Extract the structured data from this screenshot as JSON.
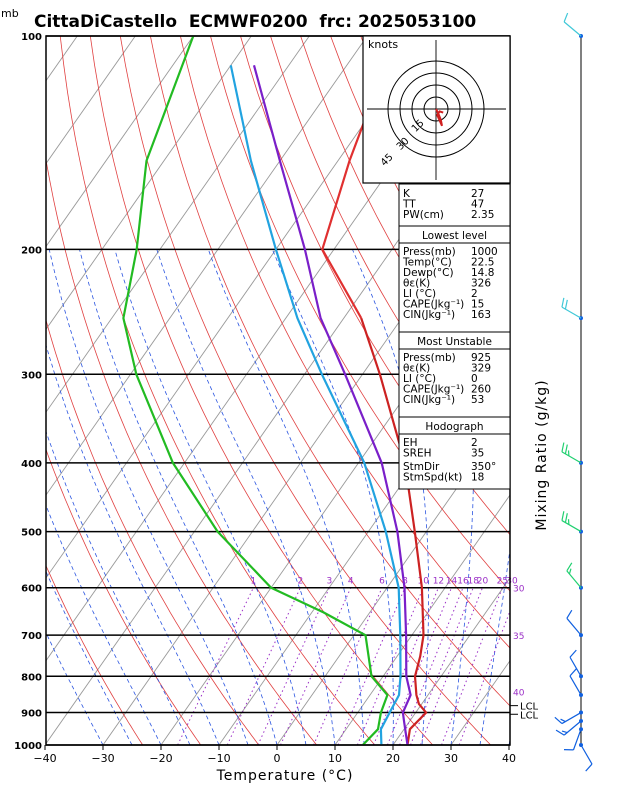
{
  "chart_data": {
    "type": "skew-t log-p sounding",
    "title": "CittaDiCastello  ECMWF0200  frc: 2025053100",
    "pressure_unit": "mb",
    "xlabel": "Temperature (°C)",
    "right_label": "Mixing Ratio (g/kg)",
    "x_range": [
      -40,
      40
    ],
    "x_ticks": [
      -40,
      -30,
      -20,
      -10,
      0,
      10,
      20,
      30,
      40
    ],
    "x_tick_labels": [
      "−40",
      "−30",
      "−20",
      "−10",
      "0",
      "10",
      "20",
      "30",
      "40"
    ],
    "p_range": [
      1000,
      100
    ],
    "p_ticks": [
      100,
      200,
      300,
      400,
      500,
      600,
      700,
      800,
      900,
      1000
    ],
    "mixing_ratio_labels": [
      "1",
      "2",
      "3",
      "4",
      "6",
      "8",
      "10",
      "12",
      "14",
      "16",
      "18",
      "20",
      "25",
      "30"
    ],
    "mixing_ratio_values": [
      1,
      2,
      3,
      4,
      6,
      8,
      10,
      12,
      14,
      16,
      18,
      20,
      25,
      30
    ],
    "right_temp_labels": [
      "30",
      "35",
      "40"
    ],
    "lcl_labels": [
      "LCL",
      "LCL"
    ],
    "series": [
      {
        "role": "temperature",
        "color": "#cc2222",
        "points": [
          [
            1000,
            22.5
          ],
          [
            950,
            21
          ],
          [
            900,
            21.8
          ],
          [
            875,
            19.5
          ],
          [
            850,
            18
          ],
          [
            800,
            15.5
          ],
          [
            750,
            14
          ],
          [
            700,
            12
          ],
          [
            600,
            6
          ],
          [
            500,
            -2
          ],
          [
            400,
            -12
          ],
          [
            300,
            -27
          ],
          [
            250,
            -37
          ]
        ]
      },
      {
        "role": "dewpoint",
        "color": "#22bb22",
        "points": [
          [
            1000,
            14.8
          ],
          [
            950,
            15.5
          ],
          [
            900,
            14
          ],
          [
            850,
            13
          ],
          [
            800,
            8
          ],
          [
            700,
            2
          ],
          [
            650,
            -8
          ],
          [
            600,
            -20
          ],
          [
            500,
            -36
          ],
          [
            400,
            -52
          ],
          [
            300,
            -69
          ],
          [
            250,
            -78
          ],
          [
            200,
            -84
          ],
          [
            150,
            -93
          ],
          [
            100,
            -100
          ]
        ]
      },
      {
        "role": "parcel",
        "color": "#7a1fc9",
        "points": [
          [
            1000,
            22.5
          ],
          [
            925,
            19
          ],
          [
            900,
            17.8
          ],
          [
            850,
            17
          ],
          [
            800,
            14
          ],
          [
            700,
            9
          ],
          [
            600,
            3
          ],
          [
            500,
            -5
          ],
          [
            400,
            -16
          ],
          [
            300,
            -33
          ],
          [
            250,
            -44
          ],
          [
            200,
            -55
          ],
          [
            150,
            -70
          ],
          [
            110,
            -86
          ]
        ]
      },
      {
        "role": "wet-bulb",
        "color": "#22a3e0",
        "points": [
          [
            1000,
            18
          ],
          [
            950,
            16
          ],
          [
            900,
            15.5
          ],
          [
            850,
            15
          ],
          [
            800,
            13
          ],
          [
            700,
            8
          ],
          [
            600,
            2
          ],
          [
            500,
            -7
          ],
          [
            400,
            -19
          ],
          [
            300,
            -37
          ],
          [
            250,
            -48
          ],
          [
            200,
            -60
          ],
          [
            150,
            -75
          ],
          [
            110,
            -90
          ]
        ]
      },
      {
        "role": "upper temperature",
        "color": "#e03030",
        "points": [
          [
            250,
            -37
          ],
          [
            200,
            -52
          ],
          [
            150,
            -58
          ],
          [
            100,
            -65
          ]
        ]
      }
    ],
    "winds": [
      {
        "p": 1000,
        "dir": 150,
        "kt": 10
      },
      {
        "p": 950,
        "dir": 200,
        "kt": 12
      },
      {
        "p": 925,
        "dir": 230,
        "kt": 15
      },
      {
        "p": 900,
        "dir": 240,
        "kt": 15
      },
      {
        "p": 850,
        "dir": 330,
        "kt": 12
      },
      {
        "p": 800,
        "dir": 330,
        "kt": 10
      },
      {
        "p": 700,
        "dir": 320,
        "kt": 10
      },
      {
        "p": 600,
        "dir": 320,
        "kt": 15
      },
      {
        "p": 500,
        "dir": 300,
        "kt": 25
      },
      {
        "p": 400,
        "dir": 300,
        "kt": 25
      },
      {
        "p": 250,
        "dir": 300,
        "kt": 20
      },
      {
        "p": 100,
        "dir": 310,
        "kt": 10
      }
    ],
    "hodograph": {
      "title": "knots",
      "ring_labels": [
        "15",
        "30",
        "45"
      ],
      "trace": [
        [
          0,
          0
        ],
        [
          2,
          -4
        ],
        [
          4,
          -9
        ],
        [
          5,
          -14
        ],
        [
          1,
          -5
        ],
        [
          3,
          -2
        ],
        [
          6,
          -3
        ]
      ]
    }
  },
  "panel": {
    "general": [
      {
        "label": "K",
        "value": "27"
      },
      {
        "label": "TT",
        "value": "47"
      },
      {
        "label": "PW(cm)",
        "value": "2.35"
      }
    ],
    "lowest_title": "Lowest level",
    "lowest": [
      {
        "label": "Press(mb)",
        "value": "1000"
      },
      {
        "label": "Temp(°C)",
        "value": "22.5"
      },
      {
        "label": "Dewp(°C)",
        "value": "14.8"
      },
      {
        "label": "θε(K)",
        "value": "326"
      },
      {
        "label": "LI (°C)",
        "value": "2"
      },
      {
        "label": "CAPE(Jkg⁻¹)",
        "value": "15"
      },
      {
        "label": "CIN(Jkg⁻¹)",
        "value": "163"
      }
    ],
    "unstable_title": "Most Unstable",
    "unstable": [
      {
        "label": "Press(mb)",
        "value": "925"
      },
      {
        "label": "θε(K)",
        "value": "329"
      },
      {
        "label": "LI (°C)",
        "value": "0"
      },
      {
        "label": "CAPE(Jkg⁻¹)",
        "value": "260"
      },
      {
        "label": "CIN(Jkg⁻¹)",
        "value": "53"
      }
    ],
    "hodo_title": "Hodograph",
    "hodo": [
      {
        "label": "EH",
        "value": "2"
      },
      {
        "label": "SREH",
        "value": "35"
      },
      {
        "label": "StmDir",
        "value": "350°"
      },
      {
        "label": "StmSpd(kt)",
        "value": "18"
      }
    ]
  }
}
